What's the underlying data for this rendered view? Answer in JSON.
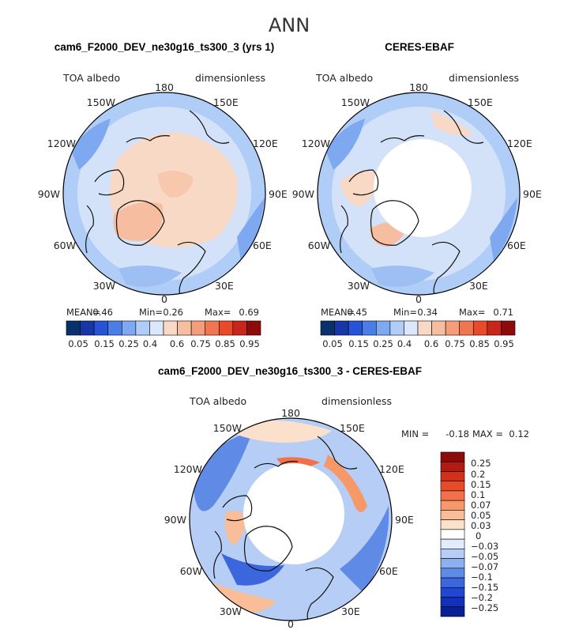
{
  "figure_title": "ANN",
  "chart_data": [
    {
      "type": "polar-contour-map",
      "panel": "model",
      "title": "cam6_F2000_DEV_ne30g16_ts300_3 (yrs 1)",
      "variable": "TOA albedo",
      "units": "dimensionless",
      "longitude_labels": [
        "180",
        "150E",
        "120E",
        "90E",
        "60E",
        "30E",
        "0",
        "30W",
        "60W",
        "90W",
        "120W",
        "150W"
      ],
      "stats": {
        "mean_label": "MEAN=",
        "mean": "0.46",
        "min_label": "Min=",
        "min": "0.26",
        "max_label": "Max=",
        "max": "0.69"
      },
      "colorbar": {
        "colors": [
          "#08306b",
          "#1737a6",
          "#2753d6",
          "#4a7ee6",
          "#7ea9f0",
          "#b0cdf7",
          "#dbe8fb",
          "#f8d9c6",
          "#f7bda0",
          "#f59c7a",
          "#f07651",
          "#e84a2a",
          "#c8261b",
          "#8e0b0b"
        ],
        "tick_labels": [
          "0.05",
          "0.15",
          "0.25",
          "0.4",
          "0.6",
          "0.75",
          "0.85",
          "0.95"
        ]
      },
      "regions": [
        {
          "name": "arctic-ocean-interior",
          "value": 0.62
        },
        {
          "name": "greenland",
          "value": 0.64
        },
        {
          "name": "mid-latitude-ocean",
          "value": 0.38
        },
        {
          "name": "outer-ring",
          "value": 0.32
        }
      ]
    },
    {
      "type": "polar-contour-map",
      "panel": "observation",
      "title": "CERES-EBAF",
      "variable": "TOA albedo",
      "units": "dimensionless",
      "longitude_labels": [
        "180",
        "150E",
        "120E",
        "90E",
        "60E",
        "30E",
        "0",
        "30W",
        "60W",
        "90W",
        "120W",
        "150W"
      ],
      "stats": {
        "mean_label": "MEAN=",
        "mean": "0.45",
        "min_label": "Min=",
        "min": "0.34",
        "max_label": "Max=",
        "max": "0.71"
      },
      "colorbar": {
        "colors": [
          "#08306b",
          "#1737a6",
          "#2753d6",
          "#4a7ee6",
          "#7ea9f0",
          "#b0cdf7",
          "#dbe8fb",
          "#f8d9c6",
          "#f7bda0",
          "#f59c7a",
          "#f07651",
          "#e84a2a",
          "#c8261b",
          "#8e0b0b"
        ],
        "tick_labels": [
          "0.05",
          "0.15",
          "0.25",
          "0.4",
          "0.6",
          "0.75",
          "0.85",
          "0.95"
        ]
      },
      "regions": [
        {
          "name": "polar-missing",
          "value": null
        },
        {
          "name": "mid-latitude-ocean",
          "value": 0.38
        },
        {
          "name": "outer-ring",
          "value": 0.33
        }
      ]
    },
    {
      "type": "polar-contour-map",
      "panel": "difference",
      "title": "cam6_F2000_DEV_ne30g16_ts300_3 - CERES-EBAF",
      "variable": "TOA albedo",
      "units": "dimensionless",
      "longitude_labels": [
        "180",
        "150E",
        "120E",
        "90E",
        "60E",
        "30E",
        "0",
        "30W",
        "60W",
        "90W",
        "120W",
        "150W"
      ],
      "stats": {
        "min_label": "MIN =",
        "min": "-0.18",
        "max_label": "MAX =",
        "max": "0.12"
      },
      "colorbar": {
        "colors": [
          "#8e0b0b",
          "#b01c12",
          "#d2301a",
          "#e84a2a",
          "#f2714a",
          "#f79869",
          "#f9bd98",
          "#fbe0cc",
          "#ffffff",
          "#e3ecfb",
          "#b6cdf5",
          "#8cb0ee",
          "#5f8ae6",
          "#3b66de",
          "#2047d3",
          "#1230b8",
          "#0a1f94"
        ],
        "tick_labels": [
          "0.25",
          "0.2",
          "0.15",
          "0.1",
          "0.07",
          "0.05",
          "0.03",
          "0",
          "−0.03",
          "−0.05",
          "−0.07",
          "−0.1",
          "−0.15",
          "−0.2",
          "−0.25"
        ]
      },
      "regions": [
        {
          "name": "polar-missing",
          "value": null
        },
        {
          "name": "ocean-bias",
          "value": -0.05
        },
        {
          "name": "pacific-positive-band",
          "value": 0.05
        },
        {
          "name": "greenland-bias",
          "value": 0.04
        }
      ]
    }
  ]
}
